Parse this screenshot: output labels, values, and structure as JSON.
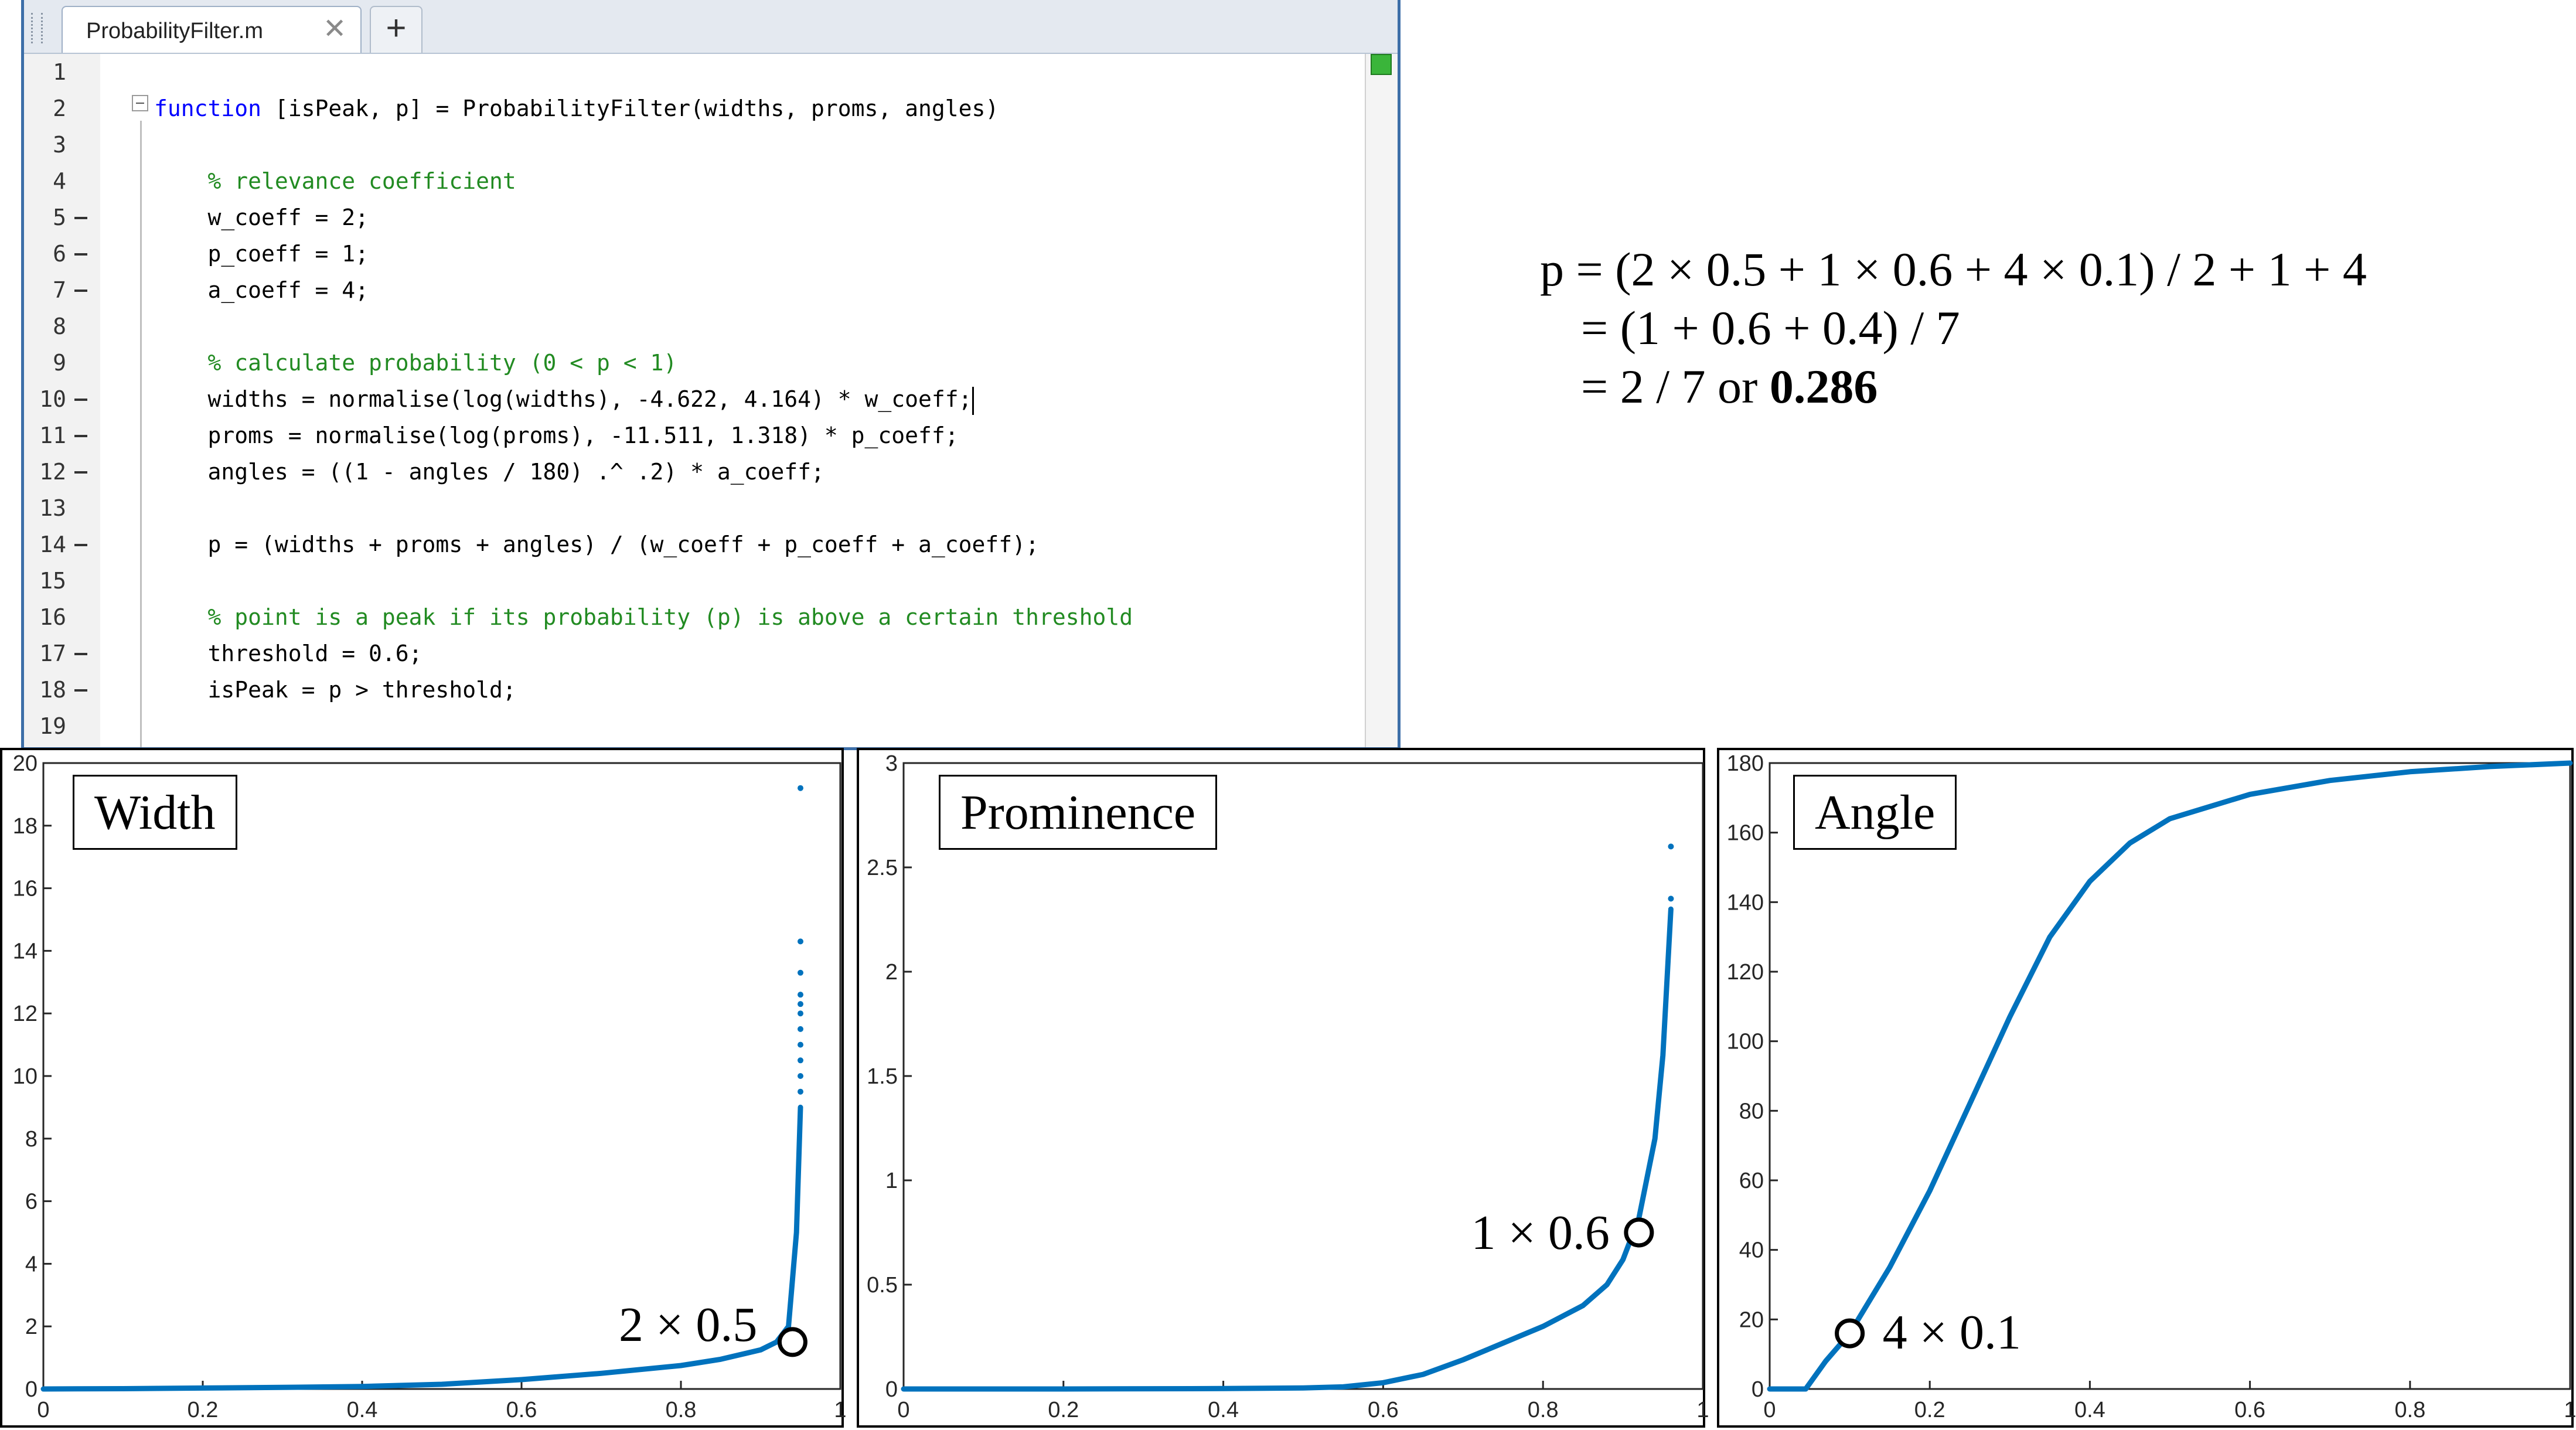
{
  "editor": {
    "tab_label": "ProbabilityFilter.m",
    "close_glyph": "✕",
    "add_glyph": "+",
    "lines": [
      {
        "n": "1",
        "dash": false,
        "segments": []
      },
      {
        "n": "2",
        "dash": false,
        "segments": [
          {
            "t": "function",
            "c": "kw"
          },
          {
            "t": " [isPeak, p] = ProbabilityFilter(widths, proms, angles)",
            "c": ""
          }
        ]
      },
      {
        "n": "3",
        "dash": false,
        "segments": []
      },
      {
        "n": "4",
        "dash": false,
        "segments": [
          {
            "t": "    % relevance coefficient",
            "c": "cm"
          }
        ]
      },
      {
        "n": "5",
        "dash": true,
        "segments": [
          {
            "t": "    w_coeff = 2;",
            "c": ""
          }
        ]
      },
      {
        "n": "6",
        "dash": true,
        "segments": [
          {
            "t": "    p_coeff = 1;",
            "c": ""
          }
        ]
      },
      {
        "n": "7",
        "dash": true,
        "segments": [
          {
            "t": "    a_coeff = 4;",
            "c": ""
          }
        ]
      },
      {
        "n": "8",
        "dash": false,
        "segments": []
      },
      {
        "n": "9",
        "dash": false,
        "segments": [
          {
            "t": "    % calculate probability (0 < p < 1)",
            "c": "cm"
          }
        ]
      },
      {
        "n": "10",
        "dash": true,
        "segments": [
          {
            "t": "    widths = normalise(log(widths), -4.622, 4.164) * w_coeff;",
            "c": ""
          }
        ],
        "cursor": true
      },
      {
        "n": "11",
        "dash": true,
        "segments": [
          {
            "t": "    proms = normalise(log(proms), -11.511, 1.318) * p_coeff;",
            "c": ""
          }
        ]
      },
      {
        "n": "12",
        "dash": true,
        "segments": [
          {
            "t": "    angles = ((1 - angles / 180) .^ .2) * a_coeff;",
            "c": ""
          }
        ]
      },
      {
        "n": "13",
        "dash": false,
        "segments": []
      },
      {
        "n": "14",
        "dash": true,
        "segments": [
          {
            "t": "    p = (widths + proms + angles) / (w_coeff + p_coeff + a_coeff);",
            "c": ""
          }
        ]
      },
      {
        "n": "15",
        "dash": false,
        "segments": []
      },
      {
        "n": "16",
        "dash": false,
        "segments": [
          {
            "t": "    % point is a peak if its probability (p) is above a certain threshold",
            "c": "cm"
          }
        ]
      },
      {
        "n": "17",
        "dash": true,
        "segments": [
          {
            "t": "    threshold = 0.6;",
            "c": ""
          }
        ]
      },
      {
        "n": "18",
        "dash": true,
        "segments": [
          {
            "t": "    isPeak = p > threshold;",
            "c": ""
          }
        ]
      },
      {
        "n": "19",
        "dash": false,
        "segments": []
      }
    ]
  },
  "equation": {
    "line1": "p = (2 × 0.5 + 1 × 0.6 + 4 × 0.1) / 2 + 1 + 4",
    "line2": "= (1 + 0.6 + 0.4) / 7",
    "line3_prefix": "= 2 / 7 or ",
    "line3_result": "0.286"
  },
  "chart_data": [
    {
      "type": "line",
      "title": "Width",
      "xlim": [
        0,
        1
      ],
      "ylim": [
        0,
        20
      ],
      "xticks": [
        "0",
        "0.2",
        "0.4",
        "0.6",
        "0.8",
        "1"
      ],
      "yticks": [
        "0",
        "2",
        "4",
        "6",
        "8",
        "10",
        "12",
        "14",
        "16",
        "18",
        "20"
      ],
      "series": [
        {
          "x": [
            0,
            0.1,
            0.2,
            0.3,
            0.4,
            0.5,
            0.6,
            0.7,
            0.8,
            0.85,
            0.9,
            0.92,
            0.935,
            0.945,
            0.95
          ],
          "y": [
            0,
            0.01,
            0.03,
            0.05,
            0.08,
            0.15,
            0.3,
            0.5,
            0.75,
            0.95,
            1.25,
            1.5,
            2,
            5,
            9
          ]
        }
      ],
      "scatter_tail": {
        "x": 0.95,
        "y": [
          9.5,
          10,
          10.5,
          11,
          11.5,
          12,
          12.3,
          12.6,
          13.3,
          14.3,
          19.2
        ]
      },
      "color": "#0072bd",
      "annotation": {
        "text": "2 × 0.5",
        "x": 0.94,
        "y": 1.5
      }
    },
    {
      "type": "line",
      "title": "Prominence",
      "xlim": [
        0,
        1
      ],
      "ylim": [
        0,
        3
      ],
      "xticks": [
        "0",
        "0.2",
        "0.4",
        "0.6",
        "0.8",
        "1"
      ],
      "yticks": [
        "0",
        "0.5",
        "1",
        "1.5",
        "2",
        "2.5",
        "3"
      ],
      "series": [
        {
          "x": [
            0,
            0.2,
            0.4,
            0.5,
            0.55,
            0.6,
            0.65,
            0.7,
            0.75,
            0.8,
            0.85,
            0.88,
            0.9,
            0.92,
            0.94,
            0.95,
            0.96
          ],
          "y": [
            0,
            0,
            0.002,
            0.005,
            0.01,
            0.03,
            0.07,
            0.14,
            0.22,
            0.3,
            0.4,
            0.5,
            0.62,
            0.82,
            1.2,
            1.6,
            2.3
          ]
        }
      ],
      "scatter_tail": {
        "x": 0.96,
        "y": [
          2.35,
          2.6
        ]
      },
      "color": "#0072bd",
      "annotation": {
        "text": "1 × 0.6",
        "x": 0.92,
        "y": 0.75
      }
    },
    {
      "type": "line",
      "title": "Angle",
      "xlim": [
        0,
        1
      ],
      "ylim": [
        0,
        180
      ],
      "xticks": [
        "0",
        "0.2",
        "0.4",
        "0.6",
        "0.8",
        "1"
      ],
      "yticks": [
        "0",
        "20",
        "40",
        "60",
        "80",
        "100",
        "120",
        "140",
        "160",
        "180"
      ],
      "series": [
        {
          "x": [
            0,
            0.045,
            0.07,
            0.1,
            0.15,
            0.2,
            0.25,
            0.3,
            0.35,
            0.4,
            0.45,
            0.5,
            0.6,
            0.7,
            0.8,
            0.9,
            1.0
          ],
          "y": [
            0,
            0,
            8,
            16,
            35,
            57,
            82,
            107,
            130,
            146,
            157,
            164,
            171,
            175,
            177.5,
            179,
            180
          ]
        }
      ],
      "color": "#0072bd",
      "annotation": {
        "text": "4 × 0.1",
        "x": 0.1,
        "y": 16
      }
    }
  ]
}
